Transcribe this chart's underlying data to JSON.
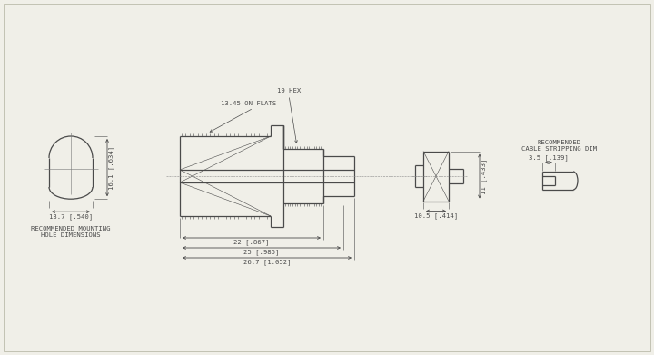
{
  "bg_color": "#f0efe8",
  "line_color": "#4a4a4a",
  "annotations": {
    "hex_label": "19 HEX",
    "flats_label": "13.45 ON FLATS",
    "mounting_label": "RECOMMENDED MOUNTING\nHOLE DIMENSIONS",
    "cable_label": "RECOMMENDED\nCABLE STRIPPING DIM",
    "dim_22": "22 [.867]",
    "dim_25": "25 [.985]",
    "dim_267": "26.7 [1.052]",
    "dim_137": "13.7 [.540]",
    "dim_161": "16.1 [.634]",
    "dim_11": "11 [.433]",
    "dim_105": "10.5 [.414]",
    "dim_35": "3.5 [.139]"
  }
}
